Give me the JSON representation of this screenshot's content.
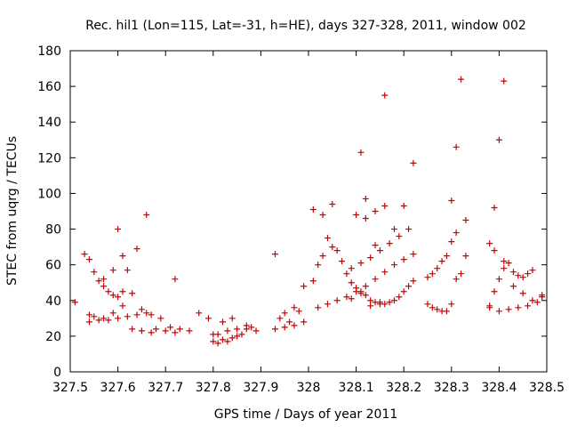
{
  "chart_data": {
    "type": "scatter",
    "title": "Rec. hil1 (Lon=115, Lat=-31, h=HE), days 327-328, 2011, window 002",
    "xlabel": "GPS time / Days of year 2011",
    "ylabel": "STEC from uqrg / TECUs",
    "xlim": [
      327.5,
      328.5
    ],
    "ylim": [
      0,
      180
    ],
    "xticks": [
      "327.5",
      "327.6",
      "327.7",
      "327.8",
      "327.9",
      "328",
      "328.1",
      "328.2",
      "328.3",
      "328.4",
      "328.5"
    ],
    "yticks": [
      "0",
      "20",
      "40",
      "60",
      "80",
      "100",
      "120",
      "140",
      "160",
      "180"
    ],
    "marker": "+",
    "color": "#cc0000",
    "grid": false,
    "legend": "none",
    "x": [
      327.51,
      327.53,
      327.54,
      327.55,
      327.56,
      327.57,
      327.58,
      327.59,
      327.6,
      327.61,
      327.63,
      327.65,
      327.67,
      327.69,
      327.71,
      327.73,
      327.75,
      327.54,
      327.56,
      327.58,
      327.6,
      327.62,
      327.64,
      327.66,
      327.68,
      327.7,
      327.72,
      327.55,
      327.57,
      327.59,
      327.61,
      327.63,
      327.65,
      327.67,
      327.54,
      327.57,
      327.59,
      327.61,
      327.6,
      327.62,
      327.64,
      327.66,
      327.72,
      327.77,
      327.79,
      327.81,
      327.83,
      327.85,
      327.87,
      327.89,
      327.8,
      327.82,
      327.84,
      327.86,
      327.88,
      327.81,
      327.83,
      327.85,
      327.87,
      327.8,
      327.82,
      327.84,
      327.93,
      327.95,
      327.97,
      327.99,
      327.94,
      327.96,
      327.98,
      327.95,
      327.97,
      327.99,
      327.93,
      328.01,
      328.02,
      328.03,
      328.04,
      328.05,
      328.06,
      328.07,
      328.08,
      328.09,
      328.1,
      328.11,
      328.12,
      328.13,
      328.14,
      328.15,
      328.16,
      328.17,
      328.18,
      328.19,
      328.2,
      328.21,
      328.22,
      328.02,
      328.04,
      328.06,
      328.08,
      328.1,
      328.12,
      328.14,
      328.16,
      328.18,
      328.2,
      328.22,
      328.09,
      328.11,
      328.13,
      328.15,
      328.17,
      328.19,
      328.21,
      328.1,
      328.12,
      328.14,
      328.16,
      328.18,
      328.09,
      328.11,
      328.13,
      328.15,
      328.01,
      328.03,
      328.05,
      328.11,
      328.12,
      328.14,
      328.16,
      328.2,
      328.22,
      328.25,
      328.26,
      328.27,
      328.28,
      328.29,
      328.3,
      328.31,
      328.32,
      328.33,
      328.25,
      328.27,
      328.29,
      328.31,
      328.33,
      328.26,
      328.28,
      328.3,
      328.3,
      328.31,
      328.32,
      328.38,
      328.39,
      328.4,
      328.41,
      328.42,
      328.43,
      328.44,
      328.45,
      328.46,
      328.47,
      328.49,
      328.38,
      328.4,
      328.42,
      328.44,
      328.46,
      328.48,
      328.39,
      328.41,
      328.43,
      328.45,
      328.47,
      328.49,
      328.39,
      328.4,
      328.41,
      328.38
    ],
    "y": [
      39,
      66,
      63,
      56,
      51,
      48,
      45,
      43,
      42,
      45,
      44,
      35,
      32,
      30,
      25,
      24,
      23,
      28,
      29,
      29,
      30,
      31,
      32,
      33,
      24,
      23,
      22,
      31,
      30,
      33,
      37,
      24,
      23,
      22,
      32,
      52,
      57,
      65,
      80,
      57,
      69,
      88,
      52,
      33,
      30,
      21,
      23,
      24,
      24,
      23,
      17,
      18,
      19,
      21,
      25,
      16,
      17,
      20,
      26,
      21,
      28,
      30,
      24,
      25,
      26,
      28,
      30,
      28,
      34,
      33,
      36,
      48,
      66,
      51,
      60,
      65,
      75,
      70,
      68,
      62,
      55,
      50,
      47,
      45,
      43,
      40,
      39,
      38,
      38,
      39,
      40,
      42,
      45,
      48,
      51,
      36,
      38,
      40,
      42,
      45,
      48,
      52,
      56,
      60,
      63,
      66,
      58,
      61,
      64,
      68,
      72,
      76,
      80,
      88,
      86,
      90,
      93,
      80,
      41,
      44,
      37,
      39,
      91,
      88,
      94,
      123,
      97,
      71,
      155,
      93,
      117,
      38,
      36,
      35,
      34,
      34,
      38,
      52,
      55,
      65,
      53,
      58,
      65,
      78,
      85,
      55,
      62,
      73,
      96,
      126,
      164,
      37,
      45,
      52,
      58,
      61,
      56,
      54,
      53,
      55,
      57,
      42,
      36,
      34,
      35,
      36,
      37,
      39,
      68,
      62,
      48,
      44,
      40,
      43,
      92,
      130,
      163,
      72
    ]
  }
}
